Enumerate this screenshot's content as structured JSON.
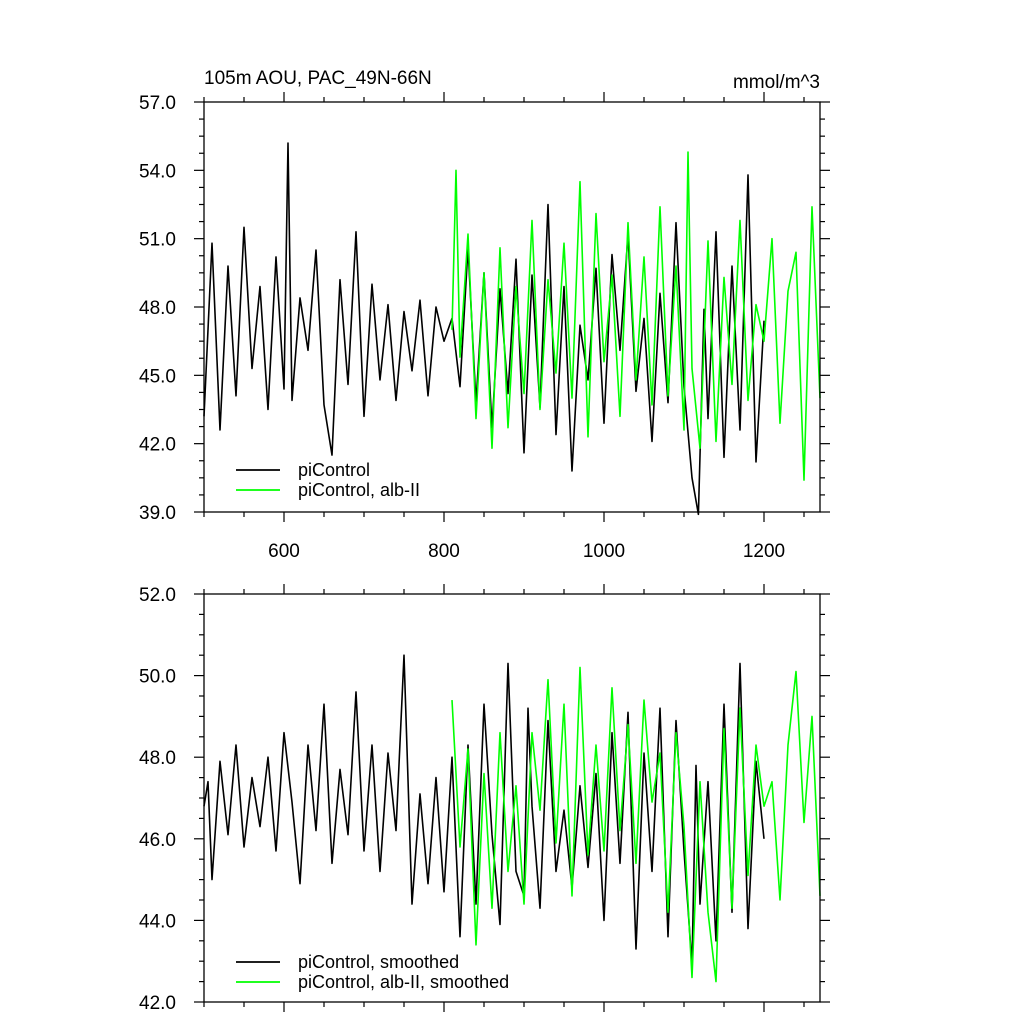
{
  "chart_data": [
    {
      "type": "line",
      "title": "105m AOU, PAC_49N-66N",
      "units": "mmol/m^3",
      "xlabel": "",
      "ylabel": "",
      "xlim": [
        500,
        1270
      ],
      "ylim": [
        39,
        57
      ],
      "xticks": [
        600,
        800,
        1000,
        1200
      ],
      "xtick_labels": [
        "600",
        "800",
        "1000",
        "1200"
      ],
      "yticks": [
        39,
        42,
        45,
        48,
        51,
        54,
        57
      ],
      "ytick_labels": [
        "39.0",
        "42.0",
        "45.0",
        "48.0",
        "51.0",
        "54.0",
        "57.0"
      ],
      "grid": false,
      "legend_position": "bottom-left",
      "series": [
        {
          "name": "piControl",
          "color": "#000000",
          "x": [
            500,
            510,
            520,
            530,
            540,
            550,
            560,
            570,
            580,
            590,
            600,
            605,
            610,
            620,
            630,
            640,
            650,
            660,
            670,
            680,
            690,
            700,
            710,
            720,
            730,
            740,
            750,
            760,
            770,
            780,
            790,
            800,
            810,
            820,
            830,
            840,
            850,
            860,
            870,
            880,
            890,
            900,
            910,
            920,
            930,
            940,
            950,
            960,
            970,
            980,
            990,
            1000,
            1010,
            1020,
            1030,
            1040,
            1050,
            1060,
            1070,
            1080,
            1090,
            1100,
            1110,
            1118,
            1125,
            1130,
            1140,
            1150,
            1160,
            1170,
            1180,
            1190,
            1200
          ],
          "y": [
            43.2,
            50.8,
            42.6,
            49.8,
            44.1,
            51.5,
            45.3,
            48.9,
            43.5,
            50.2,
            44.4,
            55.2,
            43.9,
            48.4,
            46.1,
            50.5,
            43.7,
            41.5,
            49.2,
            44.6,
            51.3,
            43.2,
            49.0,
            44.8,
            48.1,
            43.9,
            47.8,
            45.2,
            48.3,
            44.1,
            48.0,
            46.5,
            47.5,
            44.5,
            50.6,
            43.8,
            49.5,
            42.7,
            48.8,
            44.2,
            50.1,
            41.6,
            49.4,
            43.6,
            52.5,
            42.4,
            48.9,
            40.8,
            47.2,
            44.8,
            49.7,
            42.9,
            50.3,
            46.1,
            51.2,
            44.3,
            47.5,
            42.1,
            48.6,
            43.8,
            51.7,
            44.5,
            40.5,
            38.9,
            47.9,
            43.1,
            51.3,
            41.4,
            49.8,
            42.6,
            53.8,
            41.2,
            47.4
          ]
        },
        {
          "name": "piControl, alb-II",
          "color": "#00ff00",
          "x": [
            810,
            815,
            820,
            830,
            840,
            850,
            860,
            870,
            880,
            890,
            900,
            910,
            920,
            930,
            940,
            950,
            960,
            970,
            980,
            990,
            1000,
            1010,
            1020,
            1030,
            1040,
            1050,
            1060,
            1070,
            1080,
            1090,
            1100,
            1105,
            1110,
            1120,
            1130,
            1140,
            1150,
            1160,
            1170,
            1180,
            1190,
            1200,
            1210,
            1220,
            1230,
            1240,
            1250,
            1260,
            1270
          ],
          "y": [
            47.0,
            54.0,
            45.8,
            51.2,
            43.1,
            49.5,
            41.8,
            50.6,
            42.7,
            48.9,
            44.2,
            51.8,
            43.5,
            49.2,
            45.1,
            50.8,
            44.0,
            53.5,
            42.3,
            52.1,
            45.6,
            49.4,
            43.2,
            51.7,
            44.8,
            50.2,
            43.7,
            52.4,
            44.1,
            49.8,
            42.6,
            54.8,
            45.3,
            41.8,
            50.9,
            42.1,
            49.3,
            44.6,
            51.8,
            43.9,
            48.1,
            46.5,
            51.0,
            42.9,
            48.7,
            50.4,
            40.4,
            52.4,
            44.0
          ]
        }
      ]
    },
    {
      "type": "line",
      "title": "",
      "xlabel": "",
      "ylabel": "",
      "xlim": [
        500,
        1270
      ],
      "ylim": [
        42,
        52
      ],
      "xticks": [
        600,
        800,
        1000,
        1200
      ],
      "yticks": [
        42,
        44,
        46,
        48,
        50,
        52
      ],
      "ytick_labels": [
        "42.0",
        "44.0",
        "46.0",
        "48.0",
        "50.0",
        "52.0"
      ],
      "grid": false,
      "legend_position": "bottom-left",
      "series": [
        {
          "name": "piControl, smoothed",
          "color": "#000000",
          "x": [
            500,
            505,
            510,
            520,
            530,
            540,
            550,
            560,
            570,
            580,
            590,
            600,
            610,
            620,
            630,
            640,
            650,
            660,
            670,
            680,
            690,
            700,
            710,
            720,
            730,
            740,
            750,
            760,
            770,
            780,
            790,
            800,
            810,
            820,
            830,
            840,
            850,
            860,
            870,
            880,
            890,
            900,
            905,
            910,
            920,
            930,
            940,
            950,
            960,
            970,
            980,
            990,
            1000,
            1010,
            1020,
            1030,
            1040,
            1050,
            1060,
            1070,
            1080,
            1090,
            1100,
            1110,
            1115,
            1120,
            1130,
            1140,
            1150,
            1160,
            1170,
            1180,
            1190,
            1200
          ],
          "y": [
            46.8,
            47.4,
            45.0,
            47.9,
            46.1,
            48.3,
            45.8,
            47.5,
            46.3,
            48.0,
            45.7,
            48.6,
            46.9,
            44.9,
            48.3,
            46.2,
            49.3,
            45.4,
            47.7,
            46.1,
            49.6,
            45.7,
            48.3,
            45.2,
            48.1,
            46.2,
            50.5,
            44.4,
            47.1,
            44.9,
            47.5,
            44.7,
            48.0,
            43.6,
            48.3,
            44.4,
            49.3,
            46.1,
            43.9,
            50.3,
            45.2,
            44.6,
            49.2,
            46.8,
            44.3,
            48.9,
            45.2,
            46.7,
            44.8,
            47.3,
            45.3,
            47.6,
            44.0,
            48.6,
            45.4,
            49.1,
            43.3,
            48.1,
            45.2,
            49.2,
            43.6,
            48.9,
            45.7,
            42.9,
            47.8,
            44.4,
            47.4,
            43.5,
            49.3,
            44.2,
            50.3,
            43.8,
            47.9,
            46.0
          ]
        },
        {
          "name": "piControl, alb-II, smoothed",
          "color": "#00ff00",
          "x": [
            810,
            820,
            830,
            840,
            850,
            860,
            870,
            880,
            890,
            900,
            910,
            920,
            930,
            940,
            950,
            960,
            970,
            980,
            990,
            1000,
            1010,
            1020,
            1030,
            1040,
            1050,
            1060,
            1070,
            1080,
            1090,
            1100,
            1110,
            1120,
            1130,
            1140,
            1150,
            1160,
            1170,
            1180,
            1190,
            1200,
            1210,
            1220,
            1230,
            1240,
            1250,
            1260,
            1270
          ],
          "y": [
            49.4,
            45.8,
            48.2,
            43.4,
            47.6,
            44.3,
            48.6,
            45.2,
            47.3,
            44.4,
            48.6,
            46.7,
            49.9,
            45.9,
            49.3,
            44.6,
            50.2,
            45.6,
            48.3,
            45.7,
            49.7,
            46.2,
            48.8,
            45.4,
            49.4,
            46.9,
            48.1,
            44.2,
            48.6,
            46.3,
            42.6,
            47.4,
            44.2,
            42.5,
            48.7,
            44.3,
            49.2,
            45.1,
            48.3,
            46.8,
            47.4,
            44.5,
            48.3,
            50.1,
            46.4,
            49.0,
            44.6
          ]
        }
      ]
    }
  ]
}
